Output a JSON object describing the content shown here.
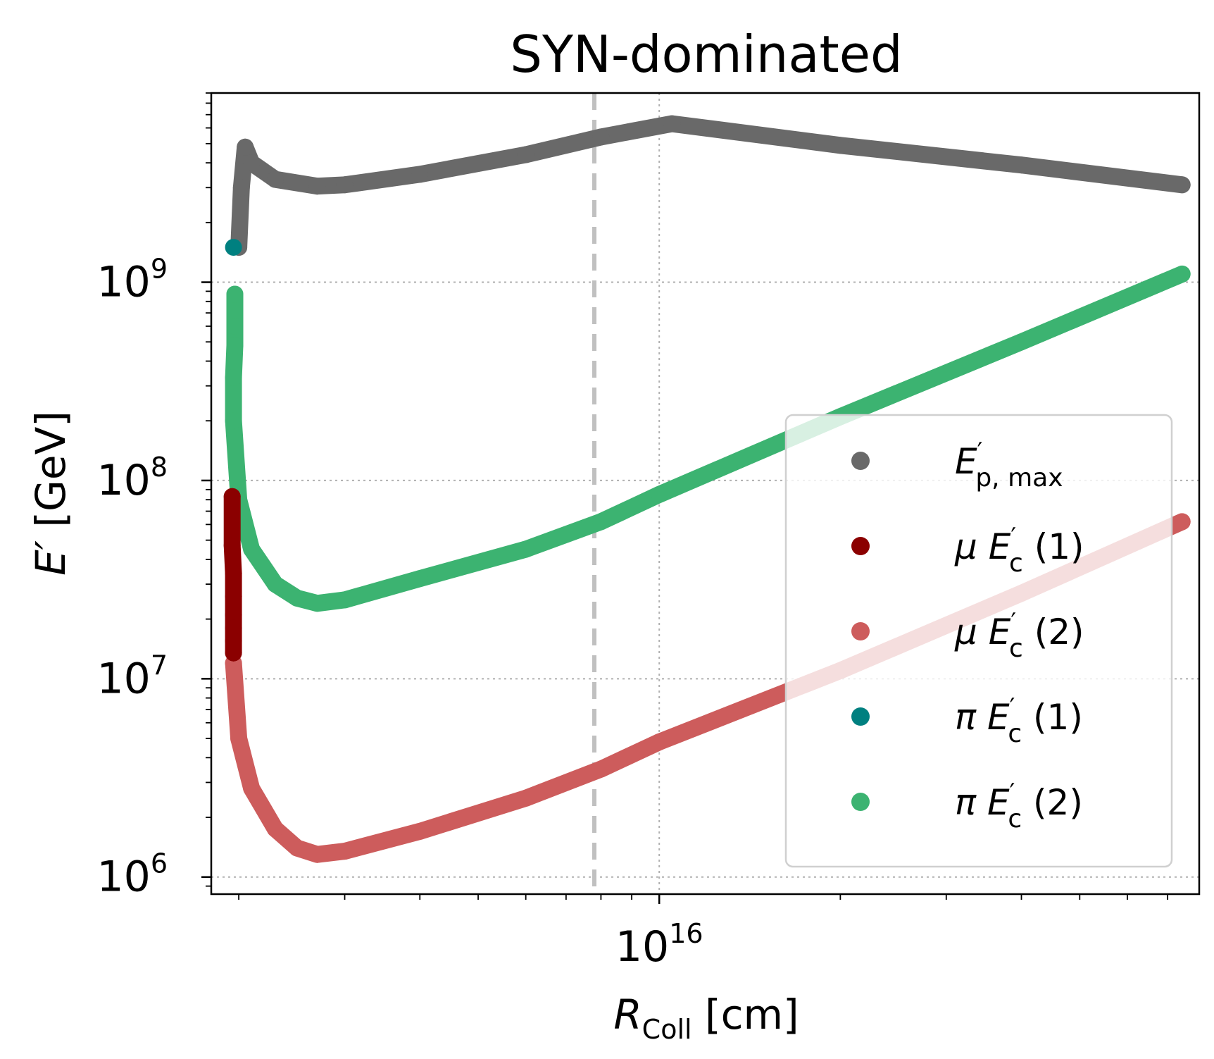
{
  "chart_data": {
    "type": "scatter",
    "title": "SYN-dominated",
    "xlabel": {
      "symbol": "R",
      "subscript": "Coll",
      "unit": " [cm]"
    },
    "ylabel": {
      "symbol": "E′",
      "unit": " [GeV]"
    },
    "xscale": "log",
    "yscale": "log",
    "xlim": [
      1800000000000000.0,
      7.9e+16
    ],
    "ylim": [
      820000.0,
      9000000000.0
    ],
    "grid": true,
    "x_ticks": [
      {
        "value": 1e+16,
        "base": "10",
        "exp": "16"
      }
    ],
    "y_ticks": [
      {
        "value": 1000000.0,
        "base": "10",
        "exp": "6"
      },
      {
        "value": 10000000.0,
        "base": "10",
        "exp": "7"
      },
      {
        "value": 100000000.0,
        "base": "10",
        "exp": "8"
      },
      {
        "value": 1000000000.0,
        "base": "10",
        "exp": "9"
      }
    ],
    "vline": {
      "x": 7800000000000000.0,
      "color": "#c0c0c0",
      "style": "dashed"
    },
    "legend_position": "center-right",
    "series": [
      {
        "name": "E'p,max",
        "label": {
          "main": "E",
          "prime": "′",
          "sub": "p, max",
          "prefix": "",
          "suffix": ""
        },
        "color": "#696969",
        "points": [
          [
            2000000000000000.0,
            1500000000.0
          ],
          [
            2020000000000000.0,
            3000000000.0
          ],
          [
            2050000000000000.0,
            4800000000.0
          ],
          [
            2100000000000000.0,
            4000000000.0
          ],
          [
            2300000000000000.0,
            3300000000.0
          ],
          [
            2700000000000000.0,
            3050000000.0
          ],
          [
            3000000000000000.0,
            3100000000.0
          ],
          [
            4000000000000000.0,
            3500000000.0
          ],
          [
            6000000000000000.0,
            4400000000.0
          ],
          [
            8000000000000000.0,
            5400000000.0
          ],
          [
            1.05e+16,
            6300000000.0
          ],
          [
            2e+16,
            4900000000.0
          ],
          [
            4e+16,
            3900000000.0
          ],
          [
            7.4e+16,
            3100000000.0
          ]
        ]
      },
      {
        "name": "μ E'c (1)",
        "label": {
          "main": "E",
          "prime": "′",
          "sub": "c",
          "prefix": "μ ",
          "suffix": " (1)"
        },
        "color": "#8b0000",
        "points": [
          [
            1950000000000000.0,
            83000000.0
          ],
          [
            1950000000000000.0,
            47000000.0
          ],
          [
            1960000000000000.0,
            34000000.0
          ],
          [
            1960000000000000.0,
            26000000.0
          ],
          [
            1960000000000000.0,
            21000000.0
          ],
          [
            1960000000000000.0,
            18000000.0
          ],
          [
            1960000000000000.0,
            15500000.0
          ],
          [
            1960000000000000.0,
            13500000.0
          ]
        ]
      },
      {
        "name": "μ E'c (2)",
        "label": {
          "main": "E",
          "prime": "′",
          "sub": "c",
          "prefix": "μ ",
          "suffix": " (2)"
        },
        "color": "#cd5c5c",
        "points": [
          [
            1960000000000000.0,
            12000000.0
          ],
          [
            2000000000000000.0,
            5000000.0
          ],
          [
            2100000000000000.0,
            2800000.0
          ],
          [
            2300000000000000.0,
            1750000.0
          ],
          [
            2500000000000000.0,
            1400000.0
          ],
          [
            2700000000000000.0,
            1300000.0
          ],
          [
            3000000000000000.0,
            1350000.0
          ],
          [
            4000000000000000.0,
            1700000.0
          ],
          [
            6000000000000000.0,
            2500000.0
          ],
          [
            8000000000000000.0,
            3500000.0
          ],
          [
            1e+16,
            4800000.0
          ],
          [
            2e+16,
            11000000.0
          ],
          [
            4e+16,
            27000000.0
          ],
          [
            7.4e+16,
            62000000.0
          ]
        ]
      },
      {
        "name": "π E'c (1)",
        "label": {
          "main": "E",
          "prime": "′",
          "sub": "c",
          "prefix": "π ",
          "suffix": " (1)"
        },
        "color": "#008080",
        "points": [
          [
            1960000000000000.0,
            1500000000.0
          ]
        ]
      },
      {
        "name": "π E'c (2)",
        "label": {
          "main": "E",
          "prime": "′",
          "sub": "c",
          "prefix": "π ",
          "suffix": " (2)"
        },
        "color": "#3cb371",
        "points": [
          [
            1970000000000000.0,
            870000000.0
          ],
          [
            1970000000000000.0,
            600000000.0
          ],
          [
            1970000000000000.0,
            480000000.0
          ],
          [
            1960000000000000.0,
            330000000.0
          ],
          [
            1960000000000000.0,
            200000000.0
          ],
          [
            2000000000000000.0,
            80000000.0
          ],
          [
            2100000000000000.0,
            45000000.0
          ],
          [
            2300000000000000.0,
            30000000.0
          ],
          [
            2500000000000000.0,
            25500000.0
          ],
          [
            2700000000000000.0,
            24000000.0
          ],
          [
            3000000000000000.0,
            25000000.0
          ],
          [
            4000000000000000.0,
            32000000.0
          ],
          [
            6000000000000000.0,
            45000000.0
          ],
          [
            8000000000000000.0,
            62000000.0
          ],
          [
            1e+16,
            85000000.0
          ],
          [
            2e+16,
            210000000.0
          ],
          [
            4e+16,
            500000000.0
          ],
          [
            7.4e+16,
            1100000000.0
          ]
        ]
      }
    ]
  }
}
